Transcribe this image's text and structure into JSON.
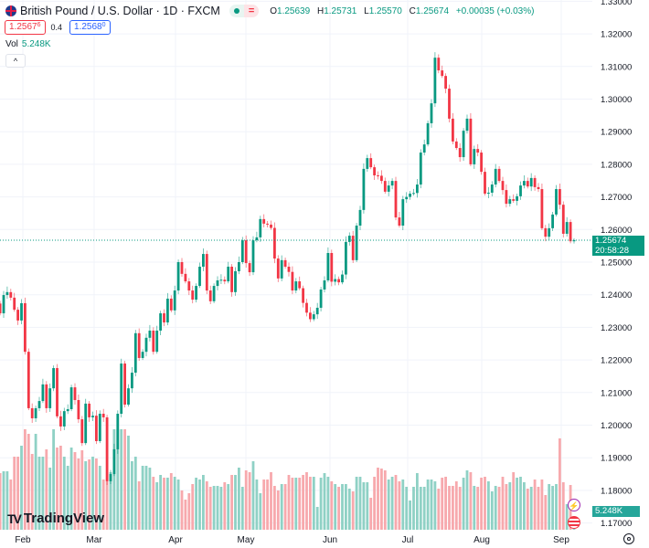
{
  "header": {
    "title": "British Pound / U.S. Dollar · 1D · FXCM",
    "status_eq": "=",
    "ohlc": {
      "o_label": "O",
      "o": "1.25639",
      "h_label": "H",
      "h": "1.25731",
      "l_label": "L",
      "l": "1.25570",
      "c_label": "C",
      "c": "1.25674",
      "change": "+0.00035 (+0.03%)"
    }
  },
  "trade": {
    "sell_main": "1.2567",
    "sell_pip": "6",
    "spread": "0.4",
    "buy_main": "1.2568",
    "buy_pip": "0"
  },
  "volume_legend": {
    "label": "Vol",
    "value": "5.248K"
  },
  "collapse_icon": "^",
  "logo": "TradingView",
  "last_price": {
    "value": "1.25674",
    "countdown": "20:58:28"
  },
  "volume_badge": "5.248K",
  "colors": {
    "up": "#089981",
    "down": "#f23645",
    "up_volume": "#8fd1c5",
    "down_volume": "#f7a9ad",
    "grid": "#f0f3fa",
    "price_line": "#089981"
  },
  "chart_data": {
    "type": "candlestick",
    "interval": "1D",
    "price_axis": {
      "ticks": [
        "1.33000",
        "1.32000",
        "1.31000",
        "1.30000",
        "1.29000",
        "1.28000",
        "1.27000",
        "1.26000",
        "1.25000",
        "1.24000",
        "1.23000",
        "1.22000",
        "1.21000",
        "1.20000",
        "1.19000",
        "1.18000",
        "1.17000"
      ],
      "range": [
        1.17,
        1.33
      ]
    },
    "time_axis": {
      "labels": [
        "Feb",
        "Mar",
        "Apr",
        "May",
        "Jun",
        "Jul",
        "Aug",
        "Sep"
      ]
    },
    "first_open": 1.2373,
    "last_bar": {
      "open": 1.25639,
      "high": 1.25731,
      "low": 1.2557,
      "close": 1.25674
    },
    "close": [
      1.2343,
      1.2399,
      1.2408,
      1.2391,
      1.2354,
      1.2321,
      1.2374,
      1.2225,
      1.2052,
      1.2021,
      1.2052,
      1.2074,
      1.2125,
      1.2052,
      1.2113,
      1.2175,
      1.2027,
      1.1996,
      1.2043,
      1.2049,
      1.2116,
      1.2077,
      1.2018,
      1.1945,
      1.2066,
      1.2024,
      1.2029,
      1.1951,
      1.2035,
      1.2024,
      1.1828,
      1.185,
      1.1926,
      1.2035,
      1.2189,
      1.2063,
      1.2113,
      1.2161,
      1.2282,
      1.2206,
      1.2225,
      1.2268,
      1.229,
      1.2225,
      1.229,
      1.2343,
      1.2315,
      1.2388,
      1.2352,
      1.2413,
      1.25,
      1.2464,
      1.2441,
      1.2413,
      1.2385,
      1.2427,
      1.2486,
      1.2525,
      1.2413,
      1.238,
      1.2427,
      1.2444,
      1.2446,
      1.2441,
      1.2486,
      1.2408,
      1.2472,
      1.25,
      1.2567,
      1.2497,
      1.2469,
      1.2567,
      1.2576,
      1.2632,
      1.2618,
      1.2615,
      1.2605,
      1.2511,
      1.245,
      1.2506,
      1.2486,
      1.247,
      1.2413,
      1.2441,
      1.242,
      1.2375,
      1.2345,
      1.2325,
      1.234,
      1.236,
      1.2416,
      1.2444,
      1.2528,
      1.244,
      1.2448,
      1.2438,
      1.2462,
      1.2562,
      1.2581,
      1.2506,
      1.2612,
      1.266,
      1.2786,
      1.2819,
      1.2791,
      1.2766,
      1.2765,
      1.2749,
      1.2716,
      1.2735,
      1.2749,
      1.2637,
      1.2612,
      1.2693,
      1.27,
      1.271,
      1.2712,
      1.2738,
      1.2836,
      1.2861,
      1.2926,
      1.2987,
      1.3127,
      1.3088,
      1.3071,
      1.3032,
      1.294,
      1.287,
      1.285,
      1.2822,
      1.2903,
      1.294,
      1.28,
      1.2847,
      1.2836,
      1.2777,
      1.271,
      1.2713,
      1.2738,
      1.2786,
      1.2749,
      1.2721,
      1.2679,
      1.2693,
      1.2688,
      1.2702,
      1.2735,
      1.2749,
      1.2732,
      1.2758,
      1.273,
      1.2724,
      1.2604,
      1.2578,
      1.2604,
      1.2646,
      1.2724,
      1.2676,
      1.2587,
      1.2623,
      1.25639,
      1.25674
    ],
    "volume_k": [
      62,
      64,
      64,
      55,
      80,
      80,
      92,
      110,
      105,
      83,
      105,
      80,
      80,
      88,
      68,
      110,
      90,
      92,
      80,
      70,
      90,
      85,
      78,
      87,
      75,
      77,
      80,
      78,
      70,
      55,
      53,
      63,
      110,
      110,
      110,
      110,
      103,
      75,
      80,
      53,
      70,
      70,
      68,
      58,
      52,
      60,
      57,
      57,
      62,
      58,
      55,
      43,
      33,
      40,
      50,
      57,
      55,
      60,
      53,
      47,
      48,
      48,
      47,
      52,
      50,
      60,
      60,
      68,
      47,
      65,
      63,
      75,
      55,
      40,
      55,
      55,
      63,
      48,
      43,
      50,
      50,
      60,
      57,
      57,
      57,
      60,
      63,
      58,
      58,
      25,
      57,
      62,
      58,
      53,
      50,
      47,
      50,
      50,
      45,
      42,
      58,
      58,
      52,
      52,
      35,
      58,
      68,
      67,
      65,
      55,
      58,
      60,
      53,
      55,
      47,
      32,
      47,
      62,
      47,
      47,
      55,
      55,
      53,
      45,
      57,
      58,
      48,
      48,
      53,
      47,
      57,
      65,
      63,
      48,
      47,
      57,
      58,
      53,
      42,
      48,
      47,
      58,
      50,
      52,
      63,
      57,
      58,
      52,
      45,
      47,
      55,
      47,
      55,
      38,
      50,
      48,
      50,
      100,
      52,
      28,
      49,
      5.248
    ]
  }
}
